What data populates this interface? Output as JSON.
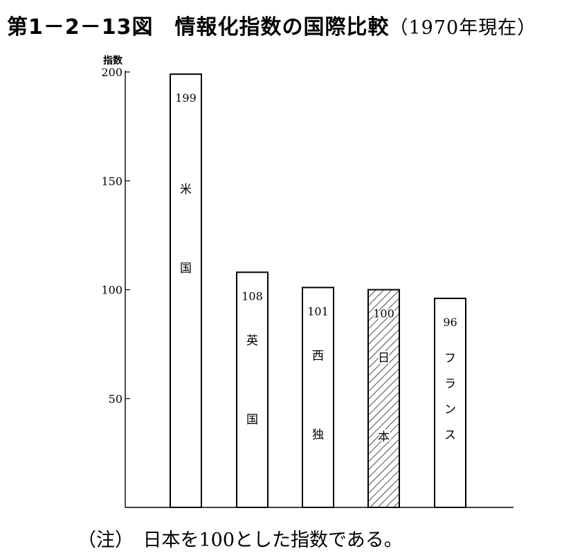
{
  "header": {
    "title": "第1－2－13図　情報化指数の国際比較",
    "date_note": "（1970年現在）"
  },
  "footer": {
    "note": "（注）　日本を100とした指数である。"
  },
  "chart_data": {
    "type": "bar",
    "title": "第1－2－13図　情報化指数の国際比較（1970年現在）",
    "ylabel": "指数",
    "xlabel": "",
    "ylim": [
      0,
      200
    ],
    "yticks": [
      50,
      100,
      150,
      200
    ],
    "grid": false,
    "categories": [
      "米国",
      "英国",
      "西独",
      "日本",
      "フランス"
    ],
    "values": [
      199,
      108,
      101,
      100,
      96
    ],
    "hatched": [
      false,
      false,
      false,
      true,
      false
    ]
  }
}
